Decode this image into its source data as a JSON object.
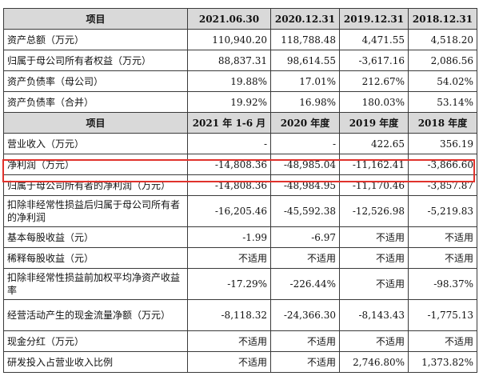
{
  "header1": [
    "项目",
    "2021.06.30",
    "2020.12.31",
    "2019.12.31",
    "2018.12.31"
  ],
  "rows1": [
    [
      "资产总额（万元）",
      "110,940.20",
      "118,788.48",
      "4,471.55",
      "4,518.20"
    ],
    [
      "归属于母公司所有者权益（万元）",
      "88,837.31",
      "98,614.55",
      "-3,617.16",
      "2,086.56"
    ],
    [
      "资产负债率（母公司）",
      "19.88%",
      "17.01%",
      "212.67%",
      "54.02%"
    ],
    [
      "资产负债率（合并）",
      "19.92%",
      "16.98%",
      "180.03%",
      "53.14%"
    ]
  ],
  "header2": [
    "项目",
    "2021 年 1-6 月",
    "2020 年度",
    "2019 年度",
    "2018 年度"
  ],
  "rows2": [
    [
      "营业收入（万元）",
      "-",
      "-",
      "422.65",
      "356.19"
    ],
    [
      "净利润（万元）",
      "-14,808.36",
      "-48,985.04",
      "-11,162.41",
      "-3,866.60"
    ],
    [
      "归属于母公司所有者的净利润（万元）",
      "-14,808.36",
      "-48,984.95",
      "-11,170.46",
      "-3,857.87"
    ],
    [
      "扣除非经常性损益后归属于母公司所有者的净利润",
      "-16,205.46",
      "-45,592.38",
      "-12,526.98",
      "-5,219.83"
    ],
    [
      "基本每股收益（元）",
      "-1.99",
      "-6.97",
      "不适用",
      "不适用"
    ],
    [
      "稀释每股收益（元）",
      "不适用",
      "不适用",
      "不适用",
      "不适用"
    ],
    [
      "扣除非经常性损益前加权平均净资产收益率",
      "-17.29%",
      "-226.44%",
      "不适用",
      "-98.37%"
    ],
    [
      "经营活动产生的现金流量净额（万元）",
      "-8,118.32",
      "-24,366.30",
      "-8,143.43",
      "-1,775.13"
    ],
    [
      "现金分红（万元）",
      "不适用",
      "不适用",
      "不适用",
      "不适用"
    ],
    [
      "研发投入占营业收入比例",
      "不适用",
      "不适用",
      "2,746.80%",
      "1,373.82%"
    ]
  ],
  "highlight_color": "#e0322c"
}
